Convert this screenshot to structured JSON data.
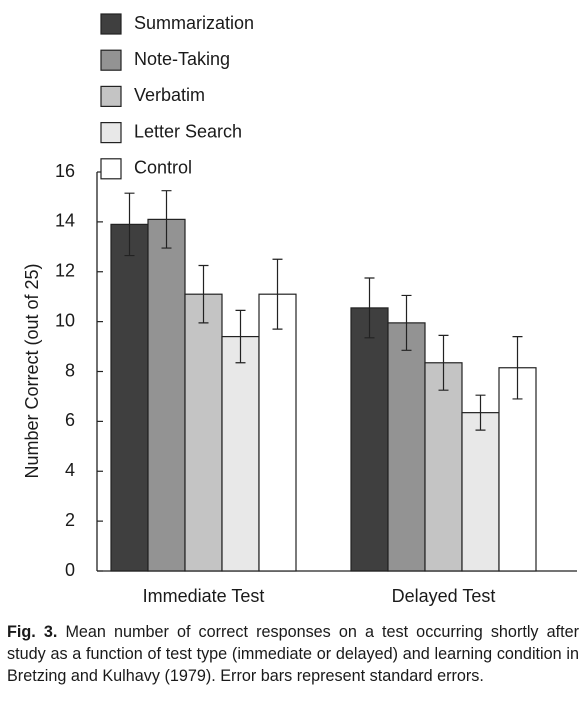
{
  "chart_data": {
    "type": "bar",
    "categories": [
      "Immediate Test",
      "Delayed Test"
    ],
    "y_label": "Number Correct (out of 25)",
    "ylim": [
      0,
      16
    ],
    "yticks": [
      0,
      2,
      4,
      6,
      8,
      10,
      12,
      14,
      16
    ],
    "legend": "top-left",
    "series": [
      {
        "name": "Summarization",
        "color": "#3f3f3f",
        "values": [
          13.9,
          10.55
        ],
        "errors": [
          1.25,
          1.2
        ]
      },
      {
        "name": "Note-Taking",
        "color": "#939393",
        "values": [
          14.1,
          9.95
        ],
        "errors": [
          1.15,
          1.1
        ]
      },
      {
        "name": "Verbatim",
        "color": "#c4c4c4",
        "values": [
          11.1,
          8.35
        ],
        "errors": [
          1.15,
          1.1
        ]
      },
      {
        "name": "Letter Search",
        "color": "#e8e8e8",
        "values": [
          9.4,
          6.35
        ],
        "errors": [
          1.05,
          0.7
        ]
      },
      {
        "name": "Control",
        "color": "#ffffff",
        "values": [
          11.1,
          8.15
        ],
        "errors": [
          1.4,
          1.25
        ]
      }
    ]
  },
  "caption": {
    "label": "Fig. 3.",
    "text": "Mean number of correct responses on a test occurring shortly after study as a function of test type (immediate or delayed) and learning condition in Bretzing and Kulhavy (1979). Error bars represent standard errors."
  }
}
